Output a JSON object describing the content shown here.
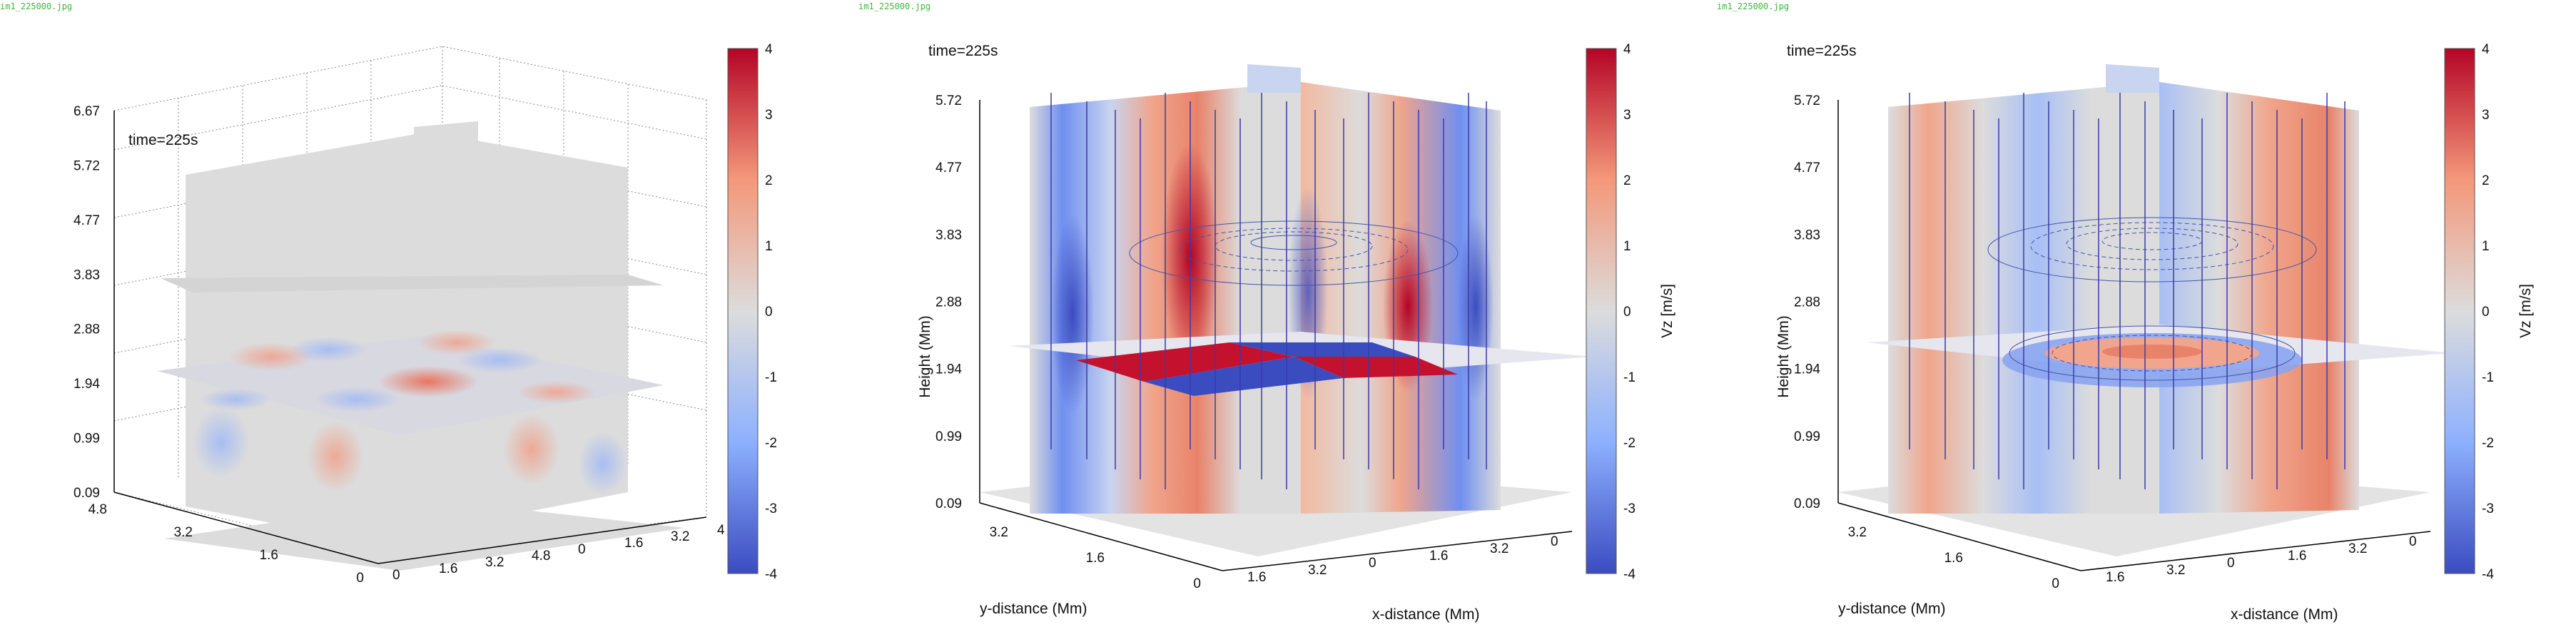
{
  "panels": [
    {
      "file_label": "im1_225000.jpg",
      "time_text": "time=225s",
      "ylabel": "",
      "xlabel": "",
      "cbar_label": ""
    },
    {
      "file_label": "im1_225000.jpg",
      "time_text": "time=225s",
      "ylabel": "Height (Mm)",
      "xlabel": "x-distance (Mm)",
      "ylabel2": "y-distance (Mm)",
      "cbar_label": "Vz [m/s]"
    },
    {
      "file_label": "im1_225000.jpg",
      "time_text": "time=225s",
      "ylabel": "Height (Mm)",
      "xlabel": "x-distance (Mm)",
      "ylabel2": "y-distance (Mm)",
      "cbar_label": "Vz [m/s]"
    }
  ],
  "chart_data": [
    {
      "type": "heatmap",
      "title": "time=225s",
      "z_ticks": [
        "6.67",
        "5.72",
        "4.77",
        "3.83",
        "2.88",
        "1.94",
        "0.99",
        "0.09"
      ],
      "y_ticks": [
        "4.8",
        "3.2",
        "1.6",
        "0"
      ],
      "x_ticks": [
        "0",
        "1.6",
        "3.2",
        "4.8",
        "0",
        "1.6",
        "3.2",
        "4"
      ],
      "colorbar_ticks": [
        "4",
        "3",
        "2",
        "1",
        "0",
        "-1",
        "-2",
        "-3",
        "-4"
      ],
      "colorbar_range": [
        -4,
        4
      ],
      "colormap": [
        "#3b4cc0",
        "#dcdcdc",
        "#b40426"
      ]
    },
    {
      "type": "heatmap",
      "title": "time=225s",
      "z_ticks": [
        "5.72",
        "4.77",
        "3.83",
        "2.88",
        "1.94",
        "0.99",
        "0.09"
      ],
      "y_ticks": [
        "3.2",
        "1.6",
        "0"
      ],
      "x_ticks": [
        "1.6",
        "3.2",
        "0",
        "1.6",
        "3.2",
        "0"
      ],
      "zlabel": "Height (Mm)",
      "xlabel": "x-distance (Mm)",
      "ylabel": "y-distance (Mm)",
      "colorbar_label": "Vz [m/s]",
      "colorbar_ticks": [
        "4",
        "3",
        "2",
        "1",
        "0",
        "-1",
        "-2",
        "-3",
        "-4"
      ],
      "colorbar_range": [
        -4,
        4
      ]
    },
    {
      "type": "heatmap",
      "title": "time=225s",
      "z_ticks": [
        "5.72",
        "4.77",
        "3.83",
        "2.88",
        "1.94",
        "0.99",
        "0.09"
      ],
      "y_ticks": [
        "3.2",
        "1.6",
        "0"
      ],
      "x_ticks": [
        "1.6",
        "3.2",
        "0",
        "1.6",
        "3.2",
        "0"
      ],
      "zlabel": "Height (Mm)",
      "xlabel": "x-distance (Mm)",
      "ylabel": "y-distance (Mm)",
      "colorbar_label": "Vz [m/s]",
      "colorbar_ticks": [
        "4",
        "3",
        "2",
        "1",
        "0",
        "-1",
        "-2",
        "-3",
        "-4"
      ],
      "colorbar_range": [
        -4,
        4
      ]
    }
  ]
}
